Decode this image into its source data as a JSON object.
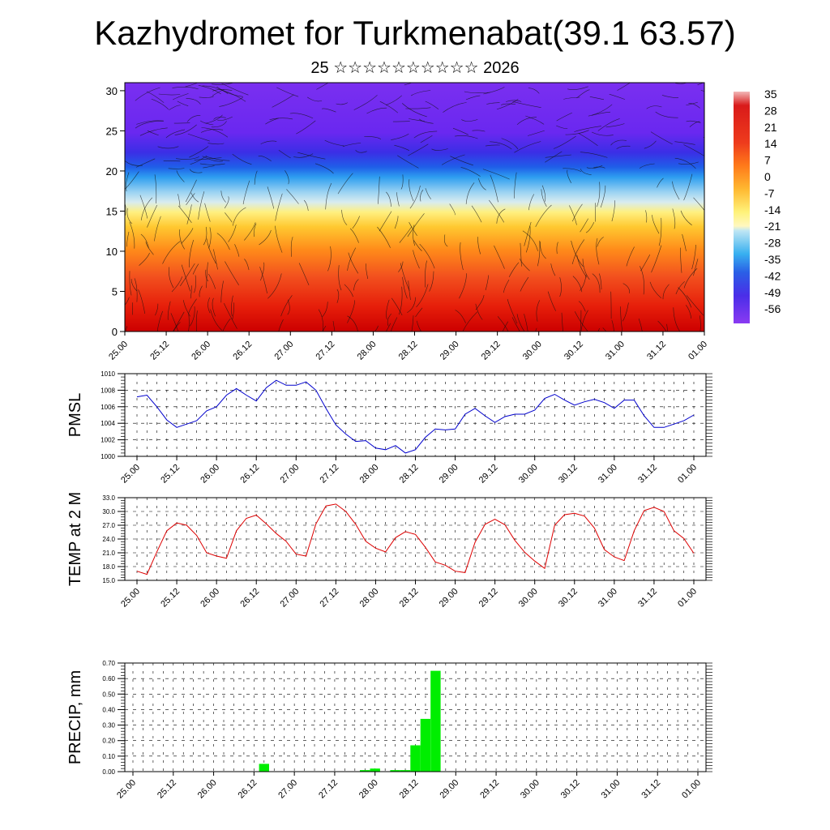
{
  "header": {
    "title": "Kazhydromet for Turkmenabat(39.1 63.57)",
    "subtitle": "25 ☆☆☆☆☆☆☆☆☆☆ 2026"
  },
  "chart_data": [
    {
      "id": "cross_section",
      "type": "heatmap",
      "title": "",
      "xlabel": "",
      "ylabel": "",
      "x_tick_labels": [
        "25.00",
        "25.12",
        "26.00",
        "26.12",
        "27.00",
        "27.12",
        "28.00",
        "28.12",
        "29.00",
        "29.12",
        "30.00",
        "30.12",
        "31.00",
        "31.12",
        "01.00"
      ],
      "y_ticks": [
        0,
        5,
        10,
        15,
        20,
        25,
        30
      ],
      "ylim": [
        0,
        31
      ],
      "colorbar": {
        "labels": [
          "35",
          "28",
          "21",
          "14",
          "7",
          "0",
          "-7",
          "-14",
          "-21",
          "-28",
          "-35",
          "-42",
          "-49",
          "-56"
        ],
        "values": [
          35,
          28,
          21,
          14,
          7,
          0,
          -7,
          -14,
          -21,
          -28,
          -35,
          -42,
          -49,
          -56
        ]
      },
      "overlay": "wind streamlines"
    },
    {
      "id": "pmsl",
      "type": "line",
      "ylabel": "PMSL",
      "color": "#0000cc",
      "ylim": [
        1000,
        1010
      ],
      "y_tick_labels": [
        "1000",
        "1002",
        "1004",
        "1006",
        "1008",
        "1010"
      ],
      "y_ticks": [
        1000,
        1002,
        1004,
        1006,
        1008,
        1010
      ],
      "x_tick_labels": [
        "25.00",
        "25.12",
        "26.00",
        "26.12",
        "27.00",
        "27.12",
        "28.00",
        "28.12",
        "29.00",
        "29.12",
        "30.00",
        "30.12",
        "31.00",
        "31.12",
        "01.00"
      ],
      "values": [
        1007.2,
        1007.4,
        1006.0,
        1004.4,
        1003.5,
        1003.9,
        1004.3,
        1005.5,
        1006.0,
        1007.4,
        1008.2,
        1007.4,
        1006.7,
        1008.3,
        1009.2,
        1008.6,
        1008.6,
        1009.0,
        1008.0,
        1005.8,
        1003.8,
        1002.7,
        1001.8,
        1001.9,
        1001.0,
        1000.8,
        1001.3,
        1000.4,
        1000.8,
        1002.3,
        1003.3,
        1003.2,
        1003.3,
        1005.1,
        1005.8,
        1004.9,
        1004.1,
        1004.8,
        1005.1,
        1005.1,
        1005.6,
        1007.0,
        1007.5,
        1006.8,
        1006.2,
        1006.6,
        1006.9,
        1006.5,
        1005.8,
        1006.8,
        1006.8,
        1004.9,
        1003.5,
        1003.5,
        1003.9,
        1004.3,
        1005.0
      ]
    },
    {
      "id": "temp2m",
      "type": "line",
      "ylabel": "TEMP at 2 M",
      "color": "#dd0000",
      "ylim": [
        15,
        33
      ],
      "y_tick_labels": [
        "15.0",
        "18.0",
        "21.0",
        "24.0",
        "27.0",
        "30.0",
        "33.0"
      ],
      "y_ticks": [
        15,
        18,
        21,
        24,
        27,
        30,
        33
      ],
      "x_tick_labels": [
        "25.00",
        "25.12",
        "26.00",
        "26.12",
        "27.00",
        "27.12",
        "28.00",
        "28.12",
        "29.00",
        "29.12",
        "30.00",
        "30.12",
        "31.00",
        "31.12",
        "01.00"
      ],
      "values": [
        17.0,
        16.3,
        21.2,
        25.8,
        27.5,
        27.0,
        24.8,
        21.0,
        20.3,
        19.8,
        25.8,
        28.5,
        29.2,
        27.3,
        25.2,
        23.5,
        20.7,
        20.3,
        27.3,
        31.2,
        31.6,
        30.0,
        27.2,
        23.5,
        22.0,
        21.2,
        24.3,
        25.6,
        25.0,
        22.2,
        19.0,
        18.3,
        17.0,
        16.7,
        23.3,
        27.2,
        28.3,
        27.1,
        23.7,
        21.1,
        19.2,
        17.6,
        27.0,
        29.3,
        29.6,
        29.0,
        26.4,
        21.7,
        20.1,
        19.3,
        25.8,
        30.2,
        30.9,
        30.0,
        25.8,
        24.1,
        20.9
      ]
    },
    {
      "id": "precip",
      "type": "bar",
      "ylabel": "PRECIP, mm",
      "color": "#00ee00",
      "ylim": [
        0,
        0.7
      ],
      "y_tick_labels": [
        "0.00",
        "0.10",
        "0.20",
        "0.30",
        "0.40",
        "0.50",
        "0.60",
        "0.70"
      ],
      "y_ticks": [
        0,
        0.1,
        0.2,
        0.3,
        0.4,
        0.5,
        0.6,
        0.7
      ],
      "x_tick_labels": [
        "25.00",
        "25.12",
        "26.00",
        "26.12",
        "27.00",
        "27.12",
        "28.00",
        "28.12",
        "29.00",
        "29.12",
        "30.00",
        "30.12",
        "31.00",
        "31.12",
        "01.00"
      ],
      "values": [
        0,
        0,
        0,
        0,
        0,
        0,
        0,
        0,
        0,
        0,
        0,
        0,
        0,
        0.05,
        0,
        0,
        0,
        0,
        0,
        0,
        0,
        0,
        0,
        0.01,
        0.02,
        0,
        0.01,
        0.01,
        0.17,
        0.34,
        0.65,
        0,
        0,
        0,
        0,
        0,
        0,
        0,
        0,
        0,
        0,
        0,
        0,
        0,
        0,
        0,
        0,
        0,
        0,
        0,
        0,
        0,
        0,
        0,
        0,
        0,
        0
      ]
    }
  ]
}
